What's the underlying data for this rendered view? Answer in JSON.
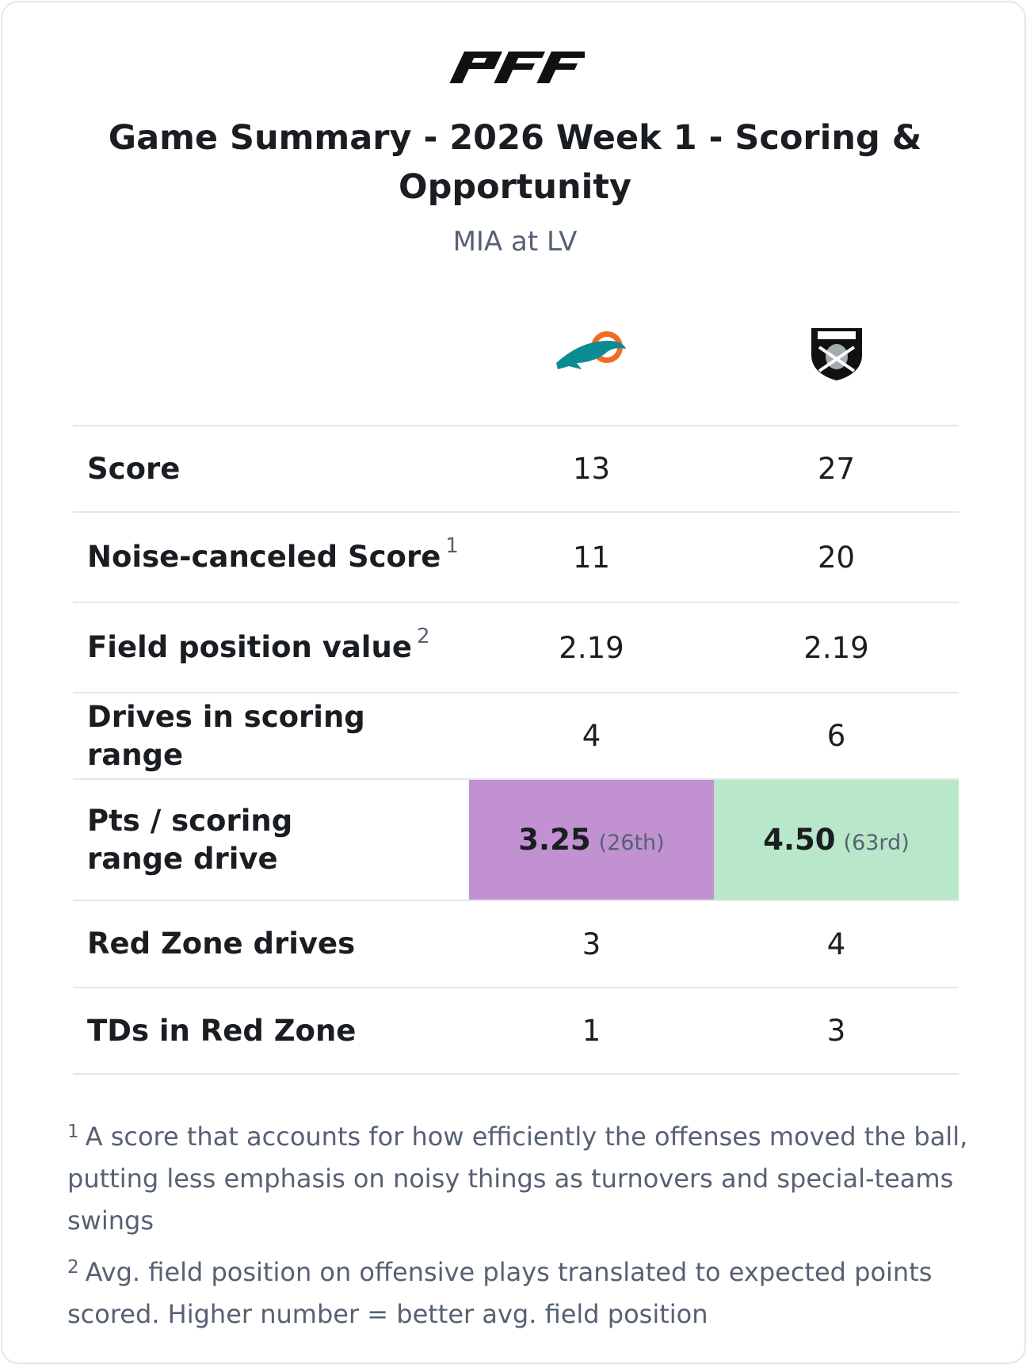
{
  "header": {
    "title": "Game Summary - 2026 Week 1 - Scoring & Opportunity",
    "subtitle": "MIA at LV"
  },
  "table": {
    "rows": [
      {
        "label": "Score",
        "note": null,
        "mia": "13",
        "lv": "27"
      },
      {
        "label": "Noise-canceled Score",
        "note": "1",
        "mia": "11",
        "lv": "20"
      },
      {
        "label": "Field position value",
        "note": "2",
        "mia": "2.19",
        "lv": "2.19"
      },
      {
        "label": "Drives in scoring range",
        "note": null,
        "mia": "4",
        "lv": "6"
      },
      {
        "label": "Pts / scoring range drive",
        "note": null,
        "mia": "3.25",
        "mia_rank": "(26th)",
        "lv": "4.50",
        "lv_rank": "(63rd)",
        "mia_color": "#c191d1",
        "lv_color": "#b9e7c9"
      },
      {
        "label": "Red Zone drives",
        "note": null,
        "mia": "3",
        "lv": "4"
      },
      {
        "label": "TDs in Red Zone",
        "note": null,
        "mia": "1",
        "lv": "3"
      }
    ]
  },
  "footnotes": [
    {
      "marker": "1",
      "text": "A score that accounts for how efficiently the offenses moved the ball, putting less emphasis on noisy things as turnovers and special-teams swings"
    },
    {
      "marker": "2",
      "text": "Avg. field position on offensive plays translated to expected points scored. Higher number = better avg. field position"
    }
  ]
}
